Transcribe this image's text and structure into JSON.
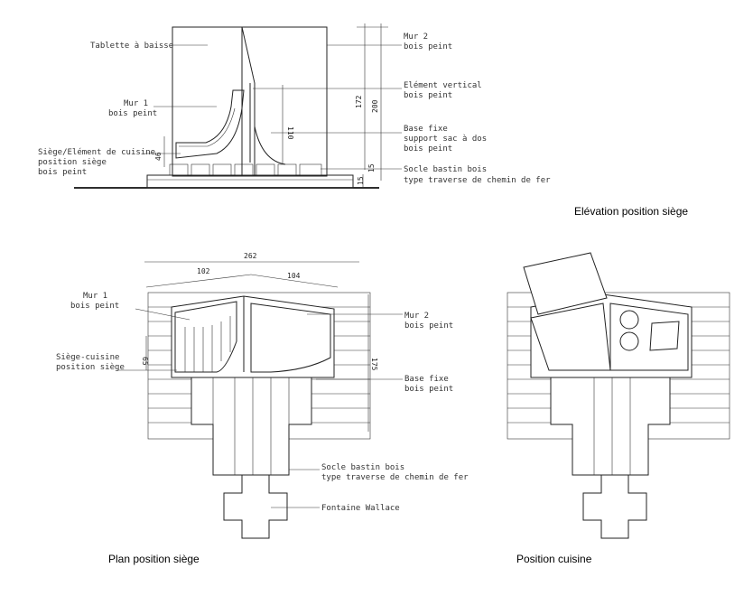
{
  "colors": {
    "line": "#222222",
    "text": "#333333",
    "background": "#ffffff"
  },
  "elevation": {
    "title": "Elévation position siège",
    "labels": {
      "tablette": "Tablette à baisse",
      "mur2_l1": "Mur 2",
      "mur2_l2": "bois peint",
      "element_l1": "Elément vertical",
      "element_l2": "bois peint",
      "mur1_l1": "Mur 1",
      "mur1_l2": "bois peint",
      "base_l1": "Base fixe",
      "base_l2": "support sac à dos",
      "base_l3": "bois peint",
      "siege_l1": "Siège/Elément de cuisine",
      "siege_l2": "position siège",
      "siege_l3": "bois peint",
      "socle_l1": "Socle bastin bois",
      "socle_l2": "type traverse de chemin de fer"
    },
    "dims": {
      "d172": "172",
      "d200": "200",
      "d110": "110",
      "d46": "46",
      "d15": "15",
      "d15b": "15"
    }
  },
  "plan": {
    "title": "Plan position siège",
    "labels": {
      "mur1_l1": "Mur 1",
      "mur1_l2": "bois peint",
      "mur2_l1": "Mur 2",
      "mur2_l2": "bois peint",
      "siege_l1": "Siège-cuisine",
      "siege_l2": "position siège",
      "base_l1": "Base fixe",
      "base_l2": "bois peint",
      "socle_l1": "Socle bastin bois",
      "socle_l2": "type traverse de chemin de fer",
      "fontaine": "Fontaine Wallace"
    },
    "dims": {
      "d262": "262",
      "d102": "102",
      "d104": "104",
      "d65": "65",
      "d175": "175"
    }
  },
  "cuisine": {
    "title": "Position cuisine"
  }
}
